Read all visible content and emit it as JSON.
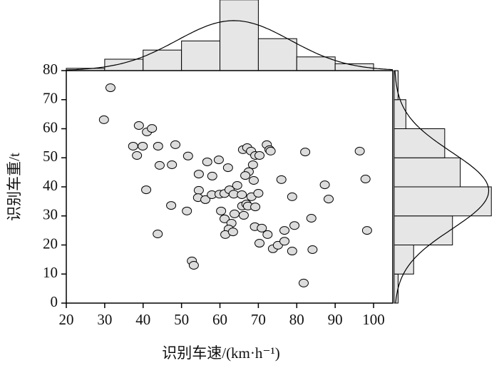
{
  "chart_data": {
    "type": "scatter",
    "xlabel": "识别车速/(km·h⁻¹)",
    "ylabel": "识别车重/t",
    "xlim": [
      20,
      105
    ],
    "xticks": [
      20,
      30,
      40,
      50,
      60,
      70,
      80,
      90,
      100
    ],
    "ylim": [
      0,
      80
    ],
    "yticks": [
      0,
      10,
      20,
      30,
      40,
      50,
      60,
      70,
      80
    ],
    "marker_color": "#dcdcdc",
    "bar_color": "#e6e6e6",
    "x": [
      31.5,
      29.8,
      38.9,
      41.0,
      42.3,
      37.4,
      39.9,
      38.4,
      43.9,
      48.4,
      51.7,
      44.3,
      47.5,
      40.8,
      56.7,
      59.7,
      62.1,
      54.5,
      58.0,
      54.5,
      54.3,
      56.2,
      57.9,
      47.3,
      51.4,
      43.8,
      52.7,
      53.2,
      59.9,
      61.2,
      62.5,
      64.5,
      63.6,
      65.7,
      60.3,
      61.2,
      63.8,
      63.0,
      62.3,
      61.4,
      63.4,
      65.8,
      66.9,
      66.2,
      67.3,
      69.2,
      68.2,
      66.0,
      67.1,
      68.1,
      69.2,
      68.6,
      67.5,
      66.6,
      68.8,
      70.3,
      72.2,
      72.9,
      73.2,
      70.0,
      69.1,
      70.9,
      72.4,
      70.3,
      73.8,
      75.1,
      76.8,
      76.8,
      76.0,
      78.8,
      78.8,
      79.4,
      82.2,
      81.8,
      83.8,
      84.1,
      87.3,
      88.3,
      96.4,
      97.9,
      98.3
    ],
    "y": [
      74.1,
      63.1,
      61.1,
      58.9,
      60.1,
      54.0,
      54.0,
      50.8,
      54.0,
      54.5,
      50.6,
      47.4,
      47.6,
      39.0,
      48.6,
      49.3,
      46.6,
      44.4,
      43.7,
      38.8,
      36.3,
      35.6,
      37.3,
      33.6,
      31.7,
      23.8,
      14.5,
      13.0,
      37.5,
      37.7,
      39.0,
      40.5,
      37.5,
      37.3,
      31.7,
      29.0,
      30.7,
      27.5,
      25.5,
      23.6,
      24.5,
      33.4,
      34.1,
      30.2,
      33.4,
      33.1,
      36.6,
      52.8,
      53.5,
      52.3,
      50.8,
      47.6,
      45.2,
      43.9,
      42.2,
      50.8,
      54.5,
      52.8,
      52.3,
      37.8,
      26.3,
      25.8,
      23.6,
      20.6,
      18.7,
      19.9,
      21.3,
      25.0,
      42.5,
      36.6,
      17.9,
      26.7,
      52.0,
      6.9,
      29.2,
      18.4,
      40.7,
      35.8,
      52.3,
      42.7,
      25.0
    ],
    "top_histogram": {
      "bins": [
        20,
        30,
        40,
        50,
        60,
        70,
        80,
        90,
        100
      ],
      "counts": [
        1,
        5,
        9,
        13,
        31,
        14,
        6,
        3
      ]
    },
    "right_histogram": {
      "bins": [
        0,
        10,
        20,
        30,
        40,
        50,
        60,
        70,
        80
      ],
      "counts": [
        1,
        5,
        15,
        25,
        17,
        13,
        3,
        1
      ]
    }
  }
}
